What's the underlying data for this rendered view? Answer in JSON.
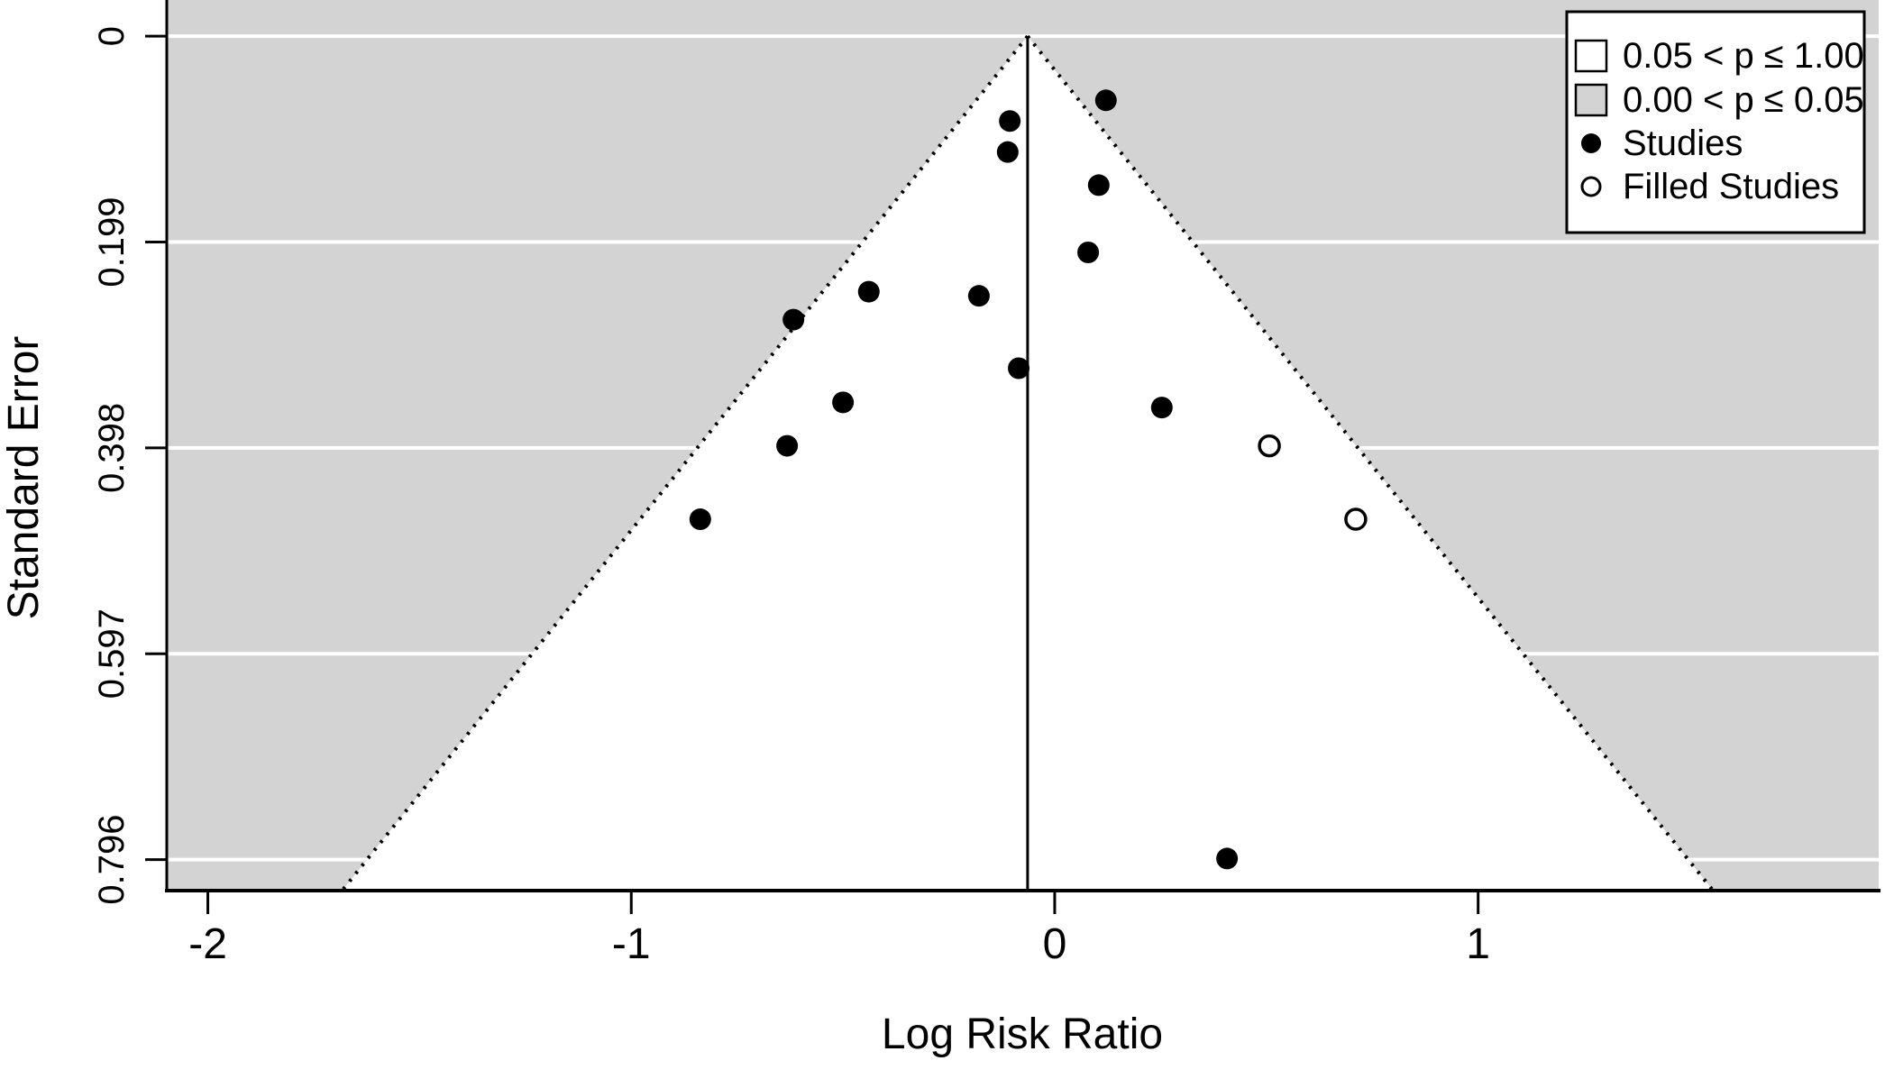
{
  "chart_data": {
    "type": "scatter",
    "subtype": "funnel-plot-trim-and-fill",
    "title": "",
    "xlabel": "Log Risk Ratio",
    "ylabel": "Standard Error",
    "x_ticks": [
      -2,
      -1,
      0,
      1
    ],
    "y_ticks": [
      0,
      0.199,
      0.398,
      0.597,
      0.796
    ],
    "x_range": [
      -2.097,
      1.946
    ],
    "y_range": [
      -0.035,
      0.826
    ],
    "y_axis_reversed_downward": true,
    "grid": true,
    "center_estimate": -0.064,
    "funnel_ci_multiplier": 1.96,
    "colors": {
      "significant_region": "#d3d3d3",
      "nonsignificant_region": "#ffffff",
      "points": "#000000",
      "gridline": "#ffffff"
    },
    "legend": {
      "position": "top-right",
      "items": [
        {
          "label": "0.05 < p ≤ 1.00",
          "marker": "white-square"
        },
        {
          "label": "0.00 < p ≤ 0.05",
          "marker": "gray-square"
        },
        {
          "label": "Studies",
          "marker": "filled-circle"
        },
        {
          "label": "Filled Studies",
          "marker": "open-circle"
        }
      ]
    },
    "series": [
      {
        "name": "Studies",
        "marker": "filled-circle",
        "points": [
          [
            -0.106,
            0.082
          ],
          [
            -0.111,
            0.112
          ],
          [
            0.121,
            0.062
          ],
          [
            0.104,
            0.144
          ],
          [
            0.079,
            0.209
          ],
          [
            -0.439,
            0.247
          ],
          [
            -0.179,
            0.251
          ],
          [
            -0.617,
            0.274
          ],
          [
            -0.085,
            0.321
          ],
          [
            -0.5,
            0.354
          ],
          [
            -0.632,
            0.396
          ],
          [
            -0.837,
            0.467
          ],
          [
            0.253,
            0.359
          ],
          [
            0.407,
            0.795
          ]
        ]
      },
      {
        "name": "Filled Studies",
        "marker": "open-circle",
        "points": [
          [
            0.507,
            0.396
          ],
          [
            0.711,
            0.467
          ]
        ]
      }
    ]
  }
}
